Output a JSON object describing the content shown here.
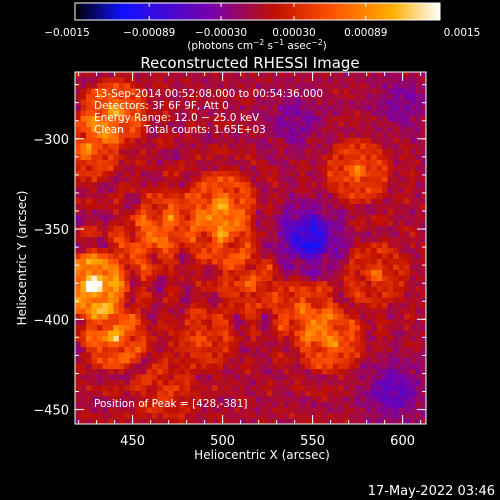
{
  "chart_data": {
    "type": "heatmap",
    "title": "Reconstructed RHESSI Image",
    "xlabel": "Heliocentric X (arcsec)",
    "ylabel": "Heliocentric Y (arcsec)",
    "xlim": [
      418,
      613
    ],
    "ylim": [
      -458,
      -263
    ],
    "xticks": [
      450,
      500,
      550,
      600
    ],
    "yticks": [
      -300,
      -350,
      -400,
      -450
    ],
    "xtick_labels": [
      "450",
      "500",
      "550",
      "600"
    ],
    "ytick_labels": [
      "−300",
      "−350",
      "−400",
      "−450"
    ],
    "colorbar": {
      "range": [
        -0.0015,
        0.0015
      ],
      "ticks": [
        -0.0015,
        -0.00089,
        -0.0003,
        0.0003,
        0.00089,
        0.0015
      ],
      "tick_labels": [
        "−0.0015",
        "−0.00089",
        "−0.00030",
        "0.00030",
        "0.00089",
        "0.0015"
      ],
      "label_parts": [
        "(photons cm",
        "−2",
        " s",
        "−1",
        " asec",
        "−2",
        ")"
      ],
      "colors": [
        "#000000",
        "#1010ff",
        "#7a00a8",
        "#c01000",
        "#ff5000",
        "#ffb000",
        "#ffffff"
      ]
    },
    "annotations": [
      "13-Sep-2014 00:52:08.000 to 00:54:36.000",
      "Detectors: 3F 6F 9F, Att 0",
      "Energy Range: 12.0 − 25.0 keV",
      "Clean      Total counts: 1.65E+03"
    ],
    "peak_label": "Position of Peak = [428,-381]",
    "peak": [
      428,
      -381
    ],
    "grid": false,
    "sources": [
      {
        "x": 440,
        "y": -285,
        "amp": 0.0009
      },
      {
        "x": 425,
        "y": -305,
        "amp": 0.0007
      },
      {
        "x": 500,
        "y": -335,
        "amp": 0.0008
      },
      {
        "x": 500,
        "y": -355,
        "amp": 0.0006
      },
      {
        "x": 470,
        "y": -345,
        "amp": 0.0006
      },
      {
        "x": 428,
        "y": -381,
        "amp": 0.0015
      },
      {
        "x": 440,
        "y": -410,
        "amp": 0.0009
      },
      {
        "x": 455,
        "y": -360,
        "amp": 0.0005
      },
      {
        "x": 575,
        "y": -318,
        "amp": 0.0007
      },
      {
        "x": 585,
        "y": -375,
        "amp": 0.0005
      },
      {
        "x": 560,
        "y": -412,
        "amp": 0.0008
      },
      {
        "x": 545,
        "y": -395,
        "amp": 0.0006
      },
      {
        "x": 490,
        "y": -410,
        "amp": 0.0005
      },
      {
        "x": 515,
        "y": -380,
        "amp": 0.0005
      },
      {
        "x": 468,
        "y": -440,
        "amp": 0.0004
      }
    ],
    "negative_sources": [
      {
        "x": 548,
        "y": -355,
        "amp": 0.0009
      },
      {
        "x": 595,
        "y": -440,
        "amp": 0.0005
      },
      {
        "x": 540,
        "y": -290,
        "amp": 0.0003
      },
      {
        "x": 600,
        "y": -280,
        "amp": 0.0003
      }
    ]
  },
  "footer": {
    "timestamp": "17-May-2022 03:46"
  }
}
